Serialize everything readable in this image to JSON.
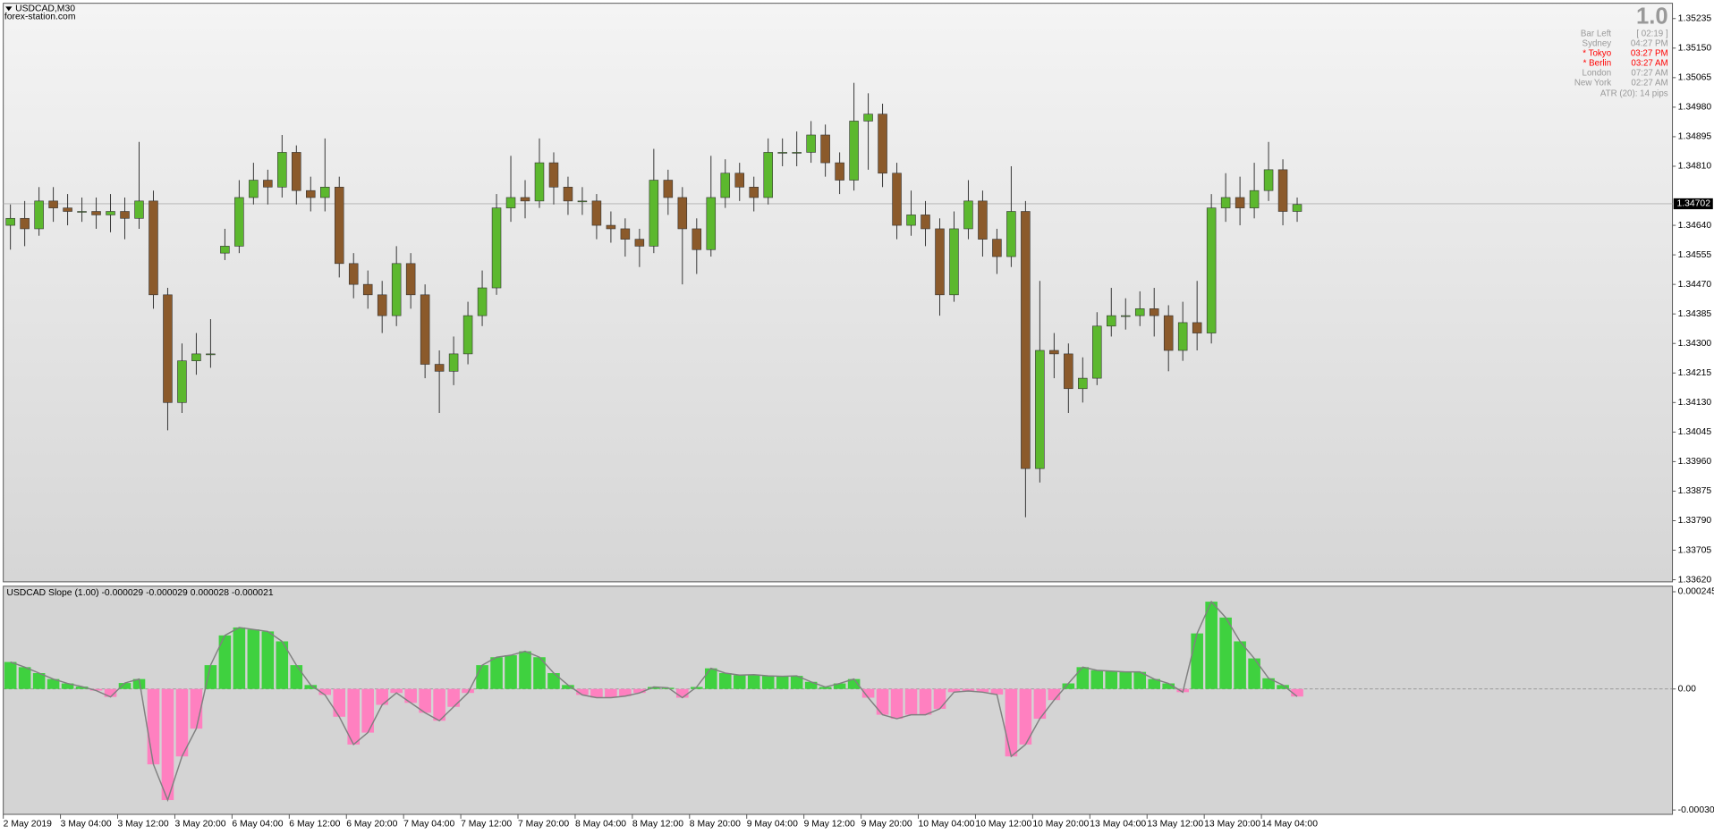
{
  "header": {
    "symbol": "USDCAD,M30",
    "site": "forex-station.com"
  },
  "info_panel": {
    "version": "1.0",
    "rows": [
      {
        "label": "Bar Left",
        "value": "[ 02:19 ]",
        "color": "#999999"
      },
      {
        "label": "Sydney",
        "value": "04:27 PM",
        "color": "#999999"
      },
      {
        "label": "* Tokyo",
        "value": "03:27 PM",
        "color": "#ff0000"
      },
      {
        "label": "* Berlin",
        "value": "03:27 AM",
        "color": "#ff0000"
      },
      {
        "label": "London",
        "value": "07:27 AM",
        "color": "#999999"
      },
      {
        "label": "New York",
        "value": "02:27 AM",
        "color": "#999999"
      }
    ],
    "atr": "ATR (20): 14 pips"
  },
  "chart_data": [
    {
      "type": "candlestick",
      "x": [
        2,
        6,
        10,
        14,
        18,
        22,
        26,
        30,
        34,
        38,
        42,
        46,
        50,
        54,
        58,
        62,
        66,
        70,
        74,
        78,
        82,
        86,
        90,
        94,
        98,
        102,
        106,
        110,
        114,
        118,
        122,
        126,
        130,
        134,
        138,
        142,
        146,
        150,
        154,
        158,
        162,
        166,
        170,
        174,
        178,
        182,
        186,
        190,
        194,
        198,
        202,
        206,
        210,
        214,
        218,
        222,
        226,
        230,
        234,
        238,
        242,
        246,
        250,
        254,
        258,
        262,
        266,
        270,
        274,
        278,
        282,
        286,
        290,
        294,
        298,
        302,
        306,
        310,
        314,
        318,
        322,
        326,
        330,
        334,
        338,
        342,
        346,
        350,
        354,
        358,
        362
      ],
      "open": [
        1.3464,
        1.3466,
        1.3463,
        1.3471,
        1.3469,
        1.3468,
        1.3468,
        1.3467,
        1.3468,
        1.3466,
        1.3471,
        1.3444,
        1.3413,
        1.3425,
        1.3427,
        1.3456,
        1.3458,
        1.3472,
        1.3477,
        1.3475,
        1.3485,
        1.3474,
        1.3472,
        1.3475,
        1.3453,
        1.3447,
        1.3444,
        1.3438,
        1.3453,
        1.3444,
        1.3424,
        1.3422,
        1.3427,
        1.3438,
        1.3446,
        1.3469,
        1.3472,
        1.3471,
        1.3482,
        1.3475,
        1.3471,
        1.3471,
        1.3464,
        1.3463,
        1.346,
        1.3458,
        1.3477,
        1.3472,
        1.3463,
        1.3457,
        1.3472,
        1.3479,
        1.3475,
        1.3472,
        1.3485,
        1.3485,
        1.3485,
        1.349,
        1.3482,
        1.3477,
        1.3494,
        1.3496,
        1.3479,
        1.3464,
        1.3467,
        1.3463,
        1.3444,
        1.3463,
        1.3471,
        1.346,
        1.3455,
        1.3468,
        1.3394,
        1.3428,
        1.3427,
        1.3417,
        1.342,
        1.3435,
        1.3438,
        1.3438,
        1.344,
        1.3438,
        1.3428,
        1.3436,
        1.3433,
        1.3469,
        1.3472,
        1.3469,
        1.3474,
        1.348,
        1.3468
      ],
      "high": [
        1.347,
        1.3471,
        1.3475,
        1.3475,
        1.3473,
        1.3472,
        1.3472,
        1.3473,
        1.3472,
        1.3488,
        1.3474,
        1.3446,
        1.343,
        1.3433,
        1.3437,
        1.3463,
        1.3477,
        1.3482,
        1.348,
        1.349,
        1.3487,
        1.3478,
        1.3489,
        1.3478,
        1.3456,
        1.3451,
        1.3448,
        1.3458,
        1.3456,
        1.3447,
        1.3428,
        1.3432,
        1.3442,
        1.3451,
        1.3473,
        1.3484,
        1.3477,
        1.3489,
        1.3485,
        1.3478,
        1.3475,
        1.3473,
        1.3468,
        1.3466,
        1.3463,
        1.3486,
        1.348,
        1.3475,
        1.3466,
        1.3484,
        1.3483,
        1.3482,
        1.3478,
        1.3489,
        1.3489,
        1.3491,
        1.3494,
        1.3493,
        1.3485,
        1.3505,
        1.3502,
        1.3499,
        1.3482,
        1.3474,
        1.3471,
        1.3466,
        1.3468,
        1.3477,
        1.3474,
        1.3463,
        1.3481,
        1.3471,
        1.3448,
        1.3433,
        1.343,
        1.3426,
        1.3439,
        1.3446,
        1.3443,
        1.3445,
        1.3446,
        1.3441,
        1.3442,
        1.3448,
        1.3473,
        1.3479,
        1.3478,
        1.3482,
        1.3488,
        1.3483,
        1.3472
      ],
      "low": [
        1.3457,
        1.3458,
        1.3461,
        1.3465,
        1.3464,
        1.3465,
        1.3463,
        1.3462,
        1.346,
        1.3463,
        1.344,
        1.3405,
        1.341,
        1.3421,
        1.3423,
        1.3454,
        1.3456,
        1.347,
        1.347,
        1.3472,
        1.347,
        1.3468,
        1.3468,
        1.3449,
        1.3443,
        1.344,
        1.3433,
        1.3435,
        1.344,
        1.342,
        1.341,
        1.3418,
        1.3424,
        1.3435,
        1.3444,
        1.3465,
        1.3466,
        1.3469,
        1.347,
        1.3467,
        1.3467,
        1.346,
        1.3459,
        1.3455,
        1.3452,
        1.3456,
        1.3467,
        1.3447,
        1.345,
        1.3455,
        1.3469,
        1.3471,
        1.3468,
        1.347,
        1.3481,
        1.3481,
        1.3482,
        1.3478,
        1.3473,
        1.3474,
        1.348,
        1.3475,
        1.346,
        1.3461,
        1.3458,
        1.3438,
        1.3442,
        1.346,
        1.3455,
        1.345,
        1.3452,
        1.338,
        1.339,
        1.342,
        1.341,
        1.3413,
        1.3418,
        1.3432,
        1.3434,
        1.3435,
        1.3432,
        1.3422,
        1.3425,
        1.3428,
        1.343,
        1.3465,
        1.3464,
        1.3466,
        1.3471,
        1.3464,
        1.3465
      ],
      "close": [
        1.3466,
        1.3463,
        1.3471,
        1.3469,
        1.3468,
        1.3468,
        1.3467,
        1.3468,
        1.3466,
        1.3471,
        1.3444,
        1.3413,
        1.3425,
        1.3427,
        1.3427,
        1.3458,
        1.3472,
        1.3477,
        1.3475,
        1.3485,
        1.3474,
        1.3472,
        1.3475,
        1.3453,
        1.3447,
        1.3444,
        1.3438,
        1.3453,
        1.3444,
        1.3424,
        1.3422,
        1.3427,
        1.3438,
        1.3446,
        1.3469,
        1.3472,
        1.3471,
        1.3482,
        1.3475,
        1.3471,
        1.3471,
        1.3464,
        1.3463,
        1.346,
        1.3458,
        1.3477,
        1.3472,
        1.3463,
        1.3457,
        1.3472,
        1.3479,
        1.3475,
        1.3472,
        1.3485,
        1.3485,
        1.3485,
        1.349,
        1.3482,
        1.3477,
        1.3494,
        1.3496,
        1.3479,
        1.3464,
        1.3467,
        1.3463,
        1.3444,
        1.3463,
        1.3471,
        1.346,
        1.3455,
        1.3468,
        1.3394,
        1.3428,
        1.3427,
        1.3417,
        1.342,
        1.3435,
        1.3438,
        1.3438,
        1.344,
        1.3438,
        1.3428,
        1.3436,
        1.3433,
        1.3469,
        1.3472,
        1.3469,
        1.3474,
        1.348,
        1.3468,
        1.347
      ],
      "xlim": [
        0,
        467
      ],
      "ylim": [
        1.33614,
        1.35279
      ],
      "yticks": [
        1.35235,
        {
          "value": 1.3515,
          "label": "1.35150"
        },
        1.35065,
        {
          "value": 1.3498,
          "label": "1.34980"
        },
        1.34895,
        {
          "value": 1.3481,
          "label": "1.34810"
        },
        {
          "value": 1.3464,
          "label": "1.34640"
        },
        1.34555,
        {
          "value": 1.3447,
          "label": "1.34470"
        },
        1.34385,
        {
          "value": 1.343,
          "label": "1.34300"
        },
        1.34215,
        {
          "value": 1.3413,
          "label": "1.34130"
        },
        1.34045,
        {
          "value": 1.3396,
          "label": "1.33960"
        },
        1.33875,
        {
          "value": 1.3379,
          "label": "1.33790"
        },
        1.33705,
        {
          "value": 1.3362,
          "label": "1.33620"
        }
      ],
      "current_price": 1.34702,
      "up_color": "#5cb82e",
      "down_color": "#8b5a2b",
      "wick_color": "#333333"
    },
    {
      "type": "bar",
      "title": "USDCAD Slope (1.00) -0.000029 -0.000029 0.000028 -0.000021",
      "x": [
        2,
        6,
        10,
        14,
        18,
        22,
        26,
        30,
        34,
        38,
        42,
        46,
        50,
        54,
        58,
        62,
        66,
        70,
        74,
        78,
        82,
        86,
        90,
        94,
        98,
        102,
        106,
        110,
        114,
        118,
        122,
        126,
        130,
        134,
        138,
        142,
        146,
        150,
        154,
        158,
        162,
        166,
        170,
        174,
        178,
        182,
        186,
        190,
        194,
        198,
        202,
        206,
        210,
        214,
        218,
        222,
        226,
        230,
        234,
        238,
        242,
        246,
        250,
        254,
        258,
        262,
        266,
        270,
        274,
        278,
        282,
        286,
        290,
        294,
        298,
        302,
        306,
        310,
        314,
        318,
        322,
        326,
        330,
        334,
        338,
        342,
        346,
        350,
        354,
        358,
        362
      ],
      "values": [
        6.8e-05,
        5.5e-05,
        4e-05,
        2.5e-05,
        1.4e-05,
        6e-06,
        -4e-06,
        -2e-05,
        1.5e-05,
        2.5e-05,
        -0.00019,
        -0.00028,
        -0.00017,
        -0.0001,
        6e-05,
        0.000135,
        0.000155,
        0.00015,
        0.000145,
        0.00012,
        6e-05,
        1e-05,
        -1.5e-05,
        -7e-05,
        -0.00014,
        -0.00011,
        -4e-05,
        -1e-05,
        -3.5e-05,
        -6e-05,
        -8e-05,
        -4.5e-05,
        -1e-05,
        6e-05,
        8e-05,
        8.5e-05,
        9.5e-05,
        8e-05,
        4e-05,
        1e-05,
        -1.5e-05,
        -2.2e-05,
        -2.2e-05,
        -1.8e-05,
        -1e-05,
        5e-06,
        3e-06,
        -2.2e-05,
        5e-06,
        5.2e-05,
        4e-05,
        3.5e-05,
        3.6e-05,
        3.3e-05,
        3.2e-05,
        3.3e-05,
        1.8e-05,
        5e-06,
        1.4e-05,
        2.5e-05,
        -2.2e-05,
        -6.5e-05,
        -7.5e-05,
        -6.5e-05,
        -6.5e-05,
        -5e-05,
        -8e-06,
        -5e-06,
        -8e-06,
        -1.4e-05,
        -0.00017,
        -0.00014,
        -7.5e-05,
        -2.8e-05,
        1.4e-05,
        5.5e-05,
        4.7e-05,
        4.5e-05,
        4.3e-05,
        4.3e-05,
        2.5e-05,
        1.4e-05,
        -8e-06,
        0.00014,
        0.00022,
        0.00018,
        0.00012,
        7.7e-05,
        2.7e-05,
        1e-05,
        -1.9e-05
      ],
      "xlim": [
        0,
        467
      ],
      "ylim": [
        -0.000316,
        0.000259
      ],
      "yticks": [
        0.000245,
        {
          "value": 0,
          "label": "0.00"
        },
        -0.000305
      ],
      "xticks": [
        {
          "value": 0,
          "label": "2 May 2019"
        },
        {
          "value": 16,
          "label": "3 May 04:00"
        },
        {
          "value": 32,
          "label": "3 May 12:00"
        },
        {
          "value": 48,
          "label": "3 May 20:00"
        },
        {
          "value": 64,
          "label": "6 May 04:00"
        },
        {
          "value": 80,
          "label": "6 May 12:00"
        },
        {
          "value": 96,
          "label": "6 May 20:00"
        },
        {
          "value": 112,
          "label": "7 May 04:00"
        },
        {
          "value": 128,
          "label": "7 May 12:00"
        },
        {
          "value": 144,
          "label": "7 May 20:00"
        },
        {
          "value": 160,
          "label": "8 May 04:00"
        },
        {
          "value": 176,
          "label": "8 May 12:00"
        },
        {
          "value": 192,
          "label": "8 May 20:00"
        },
        {
          "value": 208,
          "label": "9 May 04:00"
        },
        {
          "value": 224,
          "label": "9 May 12:00"
        },
        {
          "value": 240,
          "label": "9 May 20:00"
        },
        {
          "value": 256,
          "label": "10 May 04:00"
        },
        {
          "value": 272,
          "label": "10 May 12:00"
        },
        {
          "value": 288,
          "label": "10 May 20:00"
        },
        {
          "value": 304,
          "label": "13 May 04:00"
        },
        {
          "value": 320,
          "label": "13 May 12:00"
        },
        {
          "value": 336,
          "label": "13 May 20:00"
        },
        {
          "value": 352,
          "label": "14 May 04:00"
        }
      ],
      "positive_color": "#3fd13f",
      "negative_color": "#ff80c0",
      "outline_color": "#808080",
      "zero_line": true
    }
  ]
}
